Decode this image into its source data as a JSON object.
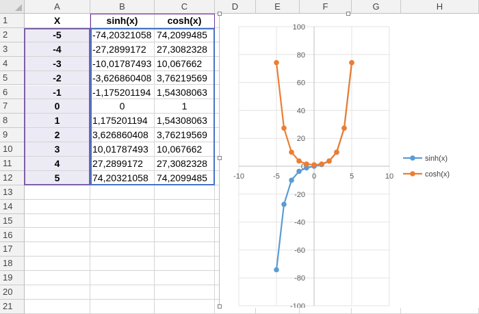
{
  "sheet": {
    "columns": [
      "A",
      "B",
      "C",
      "D",
      "E",
      "F",
      "G",
      "H"
    ],
    "rows": [
      "1",
      "2",
      "3",
      "4",
      "5",
      "6",
      "7",
      "8",
      "9",
      "10",
      "11",
      "12",
      "13",
      "14",
      "15",
      "16",
      "17",
      "18",
      "19",
      "20",
      "21"
    ],
    "headers": {
      "x": "X",
      "sinh": "sinh(x)",
      "cosh": "cosh(x)"
    },
    "data": [
      {
        "x": "-5",
        "sinh": "-74,20321058",
        "cosh": "74,2099485"
      },
      {
        "x": "-4",
        "sinh": "-27,2899172",
        "cosh": "27,3082328"
      },
      {
        "x": "-3",
        "sinh": "-10,01787493",
        "cosh": "10,067662"
      },
      {
        "x": "-2",
        "sinh": "-3,626860408",
        "cosh": "3,76219569"
      },
      {
        "x": "-1",
        "sinh": "-1,175201194",
        "cosh": "1,54308063"
      },
      {
        "x": "0",
        "sinh": "0",
        "cosh": "1"
      },
      {
        "x": "1",
        "sinh": "1,175201194",
        "cosh": "1,54308063"
      },
      {
        "x": "2",
        "sinh": "3,626860408",
        "cosh": "3,76219569"
      },
      {
        "x": "3",
        "sinh": "10,01787493",
        "cosh": "10,067662"
      },
      {
        "x": "4",
        "sinh": "27,2899172",
        "cosh": "27,3082328"
      },
      {
        "x": "5",
        "sinh": "74,20321058",
        "cosh": "74,2099485"
      }
    ]
  },
  "chart_data": {
    "type": "scatter",
    "xlim": [
      -10,
      10
    ],
    "ylim": [
      -100,
      100
    ],
    "x_ticks": [
      -10,
      -5,
      0,
      5,
      10
    ],
    "y_ticks": [
      -100,
      -80,
      -60,
      -40,
      -20,
      0,
      20,
      40,
      60,
      80,
      100
    ],
    "legend": "right",
    "grid": true,
    "series": [
      {
        "name": "sinh(x)",
        "color": "#5b9bd5",
        "x": [
          -5,
          -4,
          -3,
          -2,
          -1,
          0,
          1,
          2,
          3,
          4,
          5
        ],
        "y": [
          -74.20321058,
          -27.2899172,
          -10.01787493,
          -3.626860408,
          -1.175201194,
          0,
          1.175201194,
          3.626860408,
          10.01787493,
          27.2899172,
          74.20321058
        ]
      },
      {
        "name": "cosh(x)",
        "color": "#ed7d31",
        "x": [
          -5,
          -4,
          -3,
          -2,
          -1,
          0,
          1,
          2,
          3,
          4,
          5
        ],
        "y": [
          74.2099485,
          27.3082328,
          10.067662,
          3.76219569,
          1.54308063,
          1,
          1.54308063,
          3.76219569,
          10.067662,
          27.3082328,
          74.2099485
        ]
      }
    ]
  },
  "colors": {
    "range_x": "#7b5ea7",
    "range_data": "#4472c4",
    "range_label": "#7030a0"
  }
}
